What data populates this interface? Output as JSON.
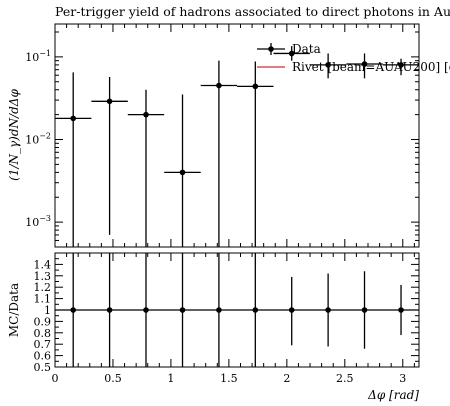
{
  "chart_data": {
    "type": "scatter",
    "title": "Per-trigger yield of hadrons associated to direct photons in Au+Au",
    "main": {
      "ylabel": "(1/N_γ)dN/dΔφ",
      "yscale": "log",
      "ylim": [
        0.0005,
        0.25
      ],
      "yticks": [
        {
          "v": 0.001,
          "b": "10",
          "e": "−3"
        },
        {
          "v": 0.01,
          "b": "10",
          "e": "−2"
        },
        {
          "v": 0.1,
          "b": "10",
          "e": "−1"
        }
      ]
    },
    "ratio": {
      "ylabel": "MC/Data",
      "ylim": [
        0.5,
        1.5
      ],
      "yticks": [
        "0.5",
        "0.6",
        "0.7",
        "0.8",
        "0.9",
        "1",
        "1.1",
        "1.2",
        "1.3",
        "1.4"
      ]
    },
    "x": {
      "label": "Δφ [rad]",
      "xlim": [
        0,
        3.14
      ],
      "xticks": [
        "0",
        "0.5",
        "1",
        "1.5",
        "2",
        "2.5",
        "3"
      ]
    },
    "legend": {
      "placement": "top-right",
      "entries": [
        {
          "label": "Data",
          "color": "#000000"
        },
        {
          "label": "Rivet [beam=AUAU200] [c",
          "color": "#d9534f"
        }
      ]
    },
    "series": [
      {
        "name": "Data",
        "points": [
          {
            "x": 0.157,
            "xlo": 0.0,
            "xhi": 0.314,
            "y": 0.018,
            "ylo": 0.0003,
            "yhi": 0.065
          },
          {
            "x": 0.471,
            "xlo": 0.314,
            "xhi": 0.628,
            "y": 0.029,
            "ylo": 0.0007,
            "yhi": 0.057
          },
          {
            "x": 0.785,
            "xlo": 0.628,
            "xhi": 0.942,
            "y": 0.02,
            "ylo": 0.0003,
            "yhi": 0.04
          },
          {
            "x": 1.1,
            "xlo": 0.942,
            "xhi": 1.257,
            "y": 0.004,
            "ylo": 0.0003,
            "yhi": 0.035
          },
          {
            "x": 1.414,
            "xlo": 1.257,
            "xhi": 1.571,
            "y": 0.045,
            "ylo": 0.0003,
            "yhi": 0.09
          },
          {
            "x": 1.728,
            "xlo": 1.571,
            "xhi": 1.885,
            "y": 0.044,
            "ylo": 0.0003,
            "yhi": 0.088
          },
          {
            "x": 2.042,
            "xlo": 1.885,
            "xhi": 2.199,
            "y": 0.11,
            "ylo": 0.09,
            "yhi": 0.135
          },
          {
            "x": 2.356,
            "xlo": 2.199,
            "xhi": 2.513,
            "y": 0.08,
            "ylo": 0.055,
            "yhi": 0.11
          },
          {
            "x": 2.67,
            "xlo": 2.513,
            "xhi": 2.827,
            "y": 0.082,
            "ylo": 0.055,
            "yhi": 0.11
          },
          {
            "x": 2.985,
            "xlo": 2.827,
            "xhi": 3.14,
            "y": 0.08,
            "ylo": 0.06,
            "yhi": 0.095
          }
        ]
      }
    ],
    "ratio_points": [
      {
        "x": 0.157,
        "y": 1,
        "ylo": 0.5,
        "yhi": 1.5
      },
      {
        "x": 0.471,
        "y": 1,
        "ylo": 0.5,
        "yhi": 1.5
      },
      {
        "x": 0.785,
        "y": 1,
        "ylo": 0.5,
        "yhi": 1.5
      },
      {
        "x": 1.1,
        "y": 1,
        "ylo": 0.5,
        "yhi": 1.5
      },
      {
        "x": 1.414,
        "y": 1,
        "ylo": 0.5,
        "yhi": 1.5
      },
      {
        "x": 1.728,
        "y": 1,
        "ylo": 0.5,
        "yhi": 1.5
      },
      {
        "x": 2.042,
        "y": 1,
        "ylo": 0.69,
        "yhi": 1.29
      },
      {
        "x": 2.356,
        "y": 1,
        "ylo": 0.68,
        "yhi": 1.32
      },
      {
        "x": 2.67,
        "y": 1,
        "ylo": 0.66,
        "yhi": 1.34
      },
      {
        "x": 2.985,
        "y": 1,
        "ylo": 0.78,
        "yhi": 1.22
      }
    ]
  }
}
